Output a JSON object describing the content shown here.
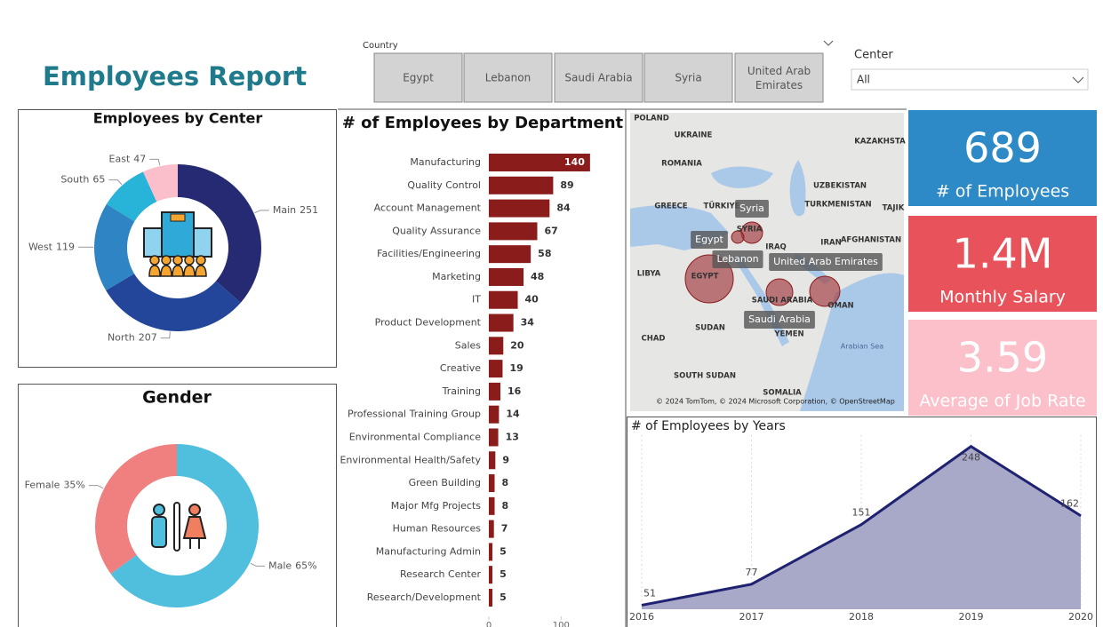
{
  "header": {
    "title": "Employees Report"
  },
  "slicers": {
    "country": {
      "label": "Country",
      "options": [
        "Egypt",
        "Lebanon",
        "Saudi Arabia",
        "Syria",
        "United Arab Emirates"
      ]
    },
    "center": {
      "label": "Center",
      "value": "All"
    }
  },
  "cards": [
    {
      "value": "689",
      "label": "# of Employees"
    },
    {
      "value": "1.4M",
      "label": "Monthly Salary"
    },
    {
      "value": "3.59",
      "label": "Average of Job Rate"
    }
  ],
  "map": {
    "labels": [
      "POLAND",
      "UKRAINE",
      "KAZAKHSTA",
      "ROMANIA",
      "UZBEKISTAN",
      "GREECE",
      "TÜRKIYE",
      "TURKMENISTAN",
      "TAJIK",
      "SYRIA",
      "IRAQ",
      "IRAN",
      "AFGHANISTAN",
      "LIBYA",
      "EGYPT",
      "SAUDI ARABIA",
      "OMAN",
      "CHAD",
      "SUDAN",
      "YEMEN",
      "Arabian Sea",
      "SOUTH SUDAN",
      "SOMALIA"
    ],
    "tooltips": [
      "Syria",
      "Egypt",
      "Lebanon",
      "United Arab Emirates",
      "Saudi Arabia"
    ],
    "attribution": "© 2024 TomTom, © 2024 Microsoft Corporation, © OpenStreetMap"
  },
  "chart_data": [
    {
      "type": "donut",
      "title": "Employees by Center",
      "categories": [
        "Main",
        "North",
        "West",
        "South",
        "East"
      ],
      "values": [
        251,
        207,
        119,
        65,
        47
      ],
      "colors": [
        "#252a72",
        "#24469a",
        "#2f84c4",
        "#28b3d8",
        "#fbbfcc"
      ]
    },
    {
      "type": "donut",
      "title": "Gender",
      "categories": [
        "Male",
        "Female"
      ],
      "values": [
        65,
        35
      ],
      "value_labels": [
        "65%",
        "35%"
      ],
      "colors": [
        "#4fbfdd",
        "#f07f7f"
      ]
    },
    {
      "type": "hbar",
      "title": "# of Employees by Department",
      "categories": [
        "Manufacturing",
        "Quality Control",
        "Account Management",
        "Quality Assurance",
        "Facilities/Engineering",
        "Marketing",
        "IT",
        "Product Development",
        "Sales",
        "Creative",
        "Training",
        "Professional Training Group",
        "Environmental Compliance",
        "Environmental Health/Safety",
        "Green Building",
        "Major Mfg Projects",
        "Human Resources",
        "Manufacturing Admin",
        "Research Center",
        "Research/Development"
      ],
      "values": [
        140,
        89,
        84,
        67,
        58,
        48,
        40,
        34,
        20,
        19,
        16,
        14,
        13,
        9,
        8,
        8,
        7,
        5,
        5,
        5
      ],
      "color": "#8b1c1c",
      "xlim": [
        0,
        150
      ],
      "xticks": [
        0,
        100
      ]
    },
    {
      "type": "area",
      "title": "# of Employees by Years",
      "x": [
        2016,
        2017,
        2018,
        2019,
        2020
      ],
      "values": [
        51,
        77,
        151,
        248,
        162
      ],
      "xlim": [
        2016,
        2020
      ],
      "xticks": [
        2016,
        2017,
        2018,
        2019,
        2020
      ],
      "ylim": [
        46,
        262
      ],
      "color": "#1f2270",
      "fill": "#a8a8c8"
    }
  ]
}
